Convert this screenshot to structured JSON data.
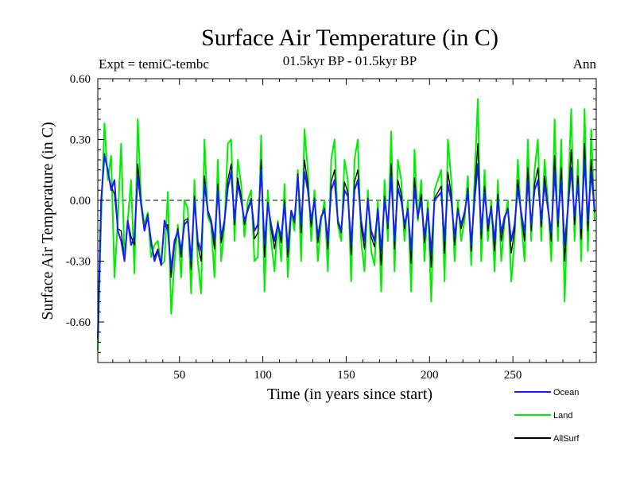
{
  "chart_data": {
    "type": "line",
    "title": "Surface Air Temperature (in C)",
    "subtitle": "01.5kyr BP - 01.5kyr BP",
    "experiment_label": "Expt = temiC-tembc",
    "period_label": "Ann",
    "xlabel": "Time (in years since start)",
    "ylabel": "Surface Air Temperature (in C)",
    "xlim": [
      1,
      300
    ],
    "ylim": [
      -0.8,
      0.6
    ],
    "x_ticks": [
      50,
      100,
      150,
      200,
      250
    ],
    "x_tick_labels": [
      "50",
      "100",
      "150",
      "200",
      "250"
    ],
    "y_ticks": [
      0.6,
      0.3,
      0.0,
      -0.3,
      -0.6
    ],
    "y_tick_labels": [
      "0.60",
      "0.30",
      "0.00",
      "-0.30",
      "-0.60"
    ],
    "reference_line": 0.0,
    "series": [
      {
        "name": "Land",
        "color": "#00ee00",
        "x": [
          1,
          3,
          5,
          7,
          9,
          11,
          13,
          15,
          17,
          19,
          21,
          23,
          25,
          27,
          29,
          31,
          33,
          35,
          37,
          39,
          41,
          43,
          45,
          47,
          49,
          51,
          53,
          55,
          57,
          59,
          61,
          63,
          65,
          67,
          69,
          71,
          73,
          75,
          77,
          79,
          81,
          83,
          85,
          87,
          89,
          91,
          93,
          95,
          97,
          99,
          101,
          103,
          105,
          107,
          109,
          111,
          113,
          115,
          117,
          119,
          121,
          123,
          125,
          127,
          129,
          131,
          133,
          135,
          137,
          139,
          141,
          143,
          145,
          147,
          149,
          151,
          153,
          155,
          157,
          159,
          161,
          163,
          165,
          167,
          169,
          171,
          173,
          175,
          177,
          179,
          181,
          183,
          185,
          187,
          189,
          191,
          193,
          195,
          197,
          199,
          201,
          203,
          205,
          207,
          209,
          211,
          213,
          215,
          217,
          219,
          221,
          223,
          225,
          227,
          229,
          231,
          233,
          235,
          237,
          239,
          241,
          243,
          245,
          247,
          249,
          251,
          253,
          255,
          257,
          259,
          261,
          263,
          265,
          267,
          269,
          271,
          273,
          275,
          277,
          279,
          281,
          283,
          285,
          287,
          289,
          291,
          293,
          295,
          297,
          299
        ],
        "values": [
          -0.74,
          -0.1,
          0.38,
          0.1,
          0.22,
          -0.38,
          -0.1,
          0.28,
          -0.28,
          -0.1,
          0.1,
          -0.36,
          0.4,
          0.0,
          -0.12,
          -0.06,
          -0.28,
          -0.22,
          -0.2,
          -0.32,
          -0.3,
          0.04,
          -0.56,
          -0.3,
          -0.12,
          -0.38,
          0.0,
          -0.04,
          -0.46,
          0.1,
          -0.3,
          -0.46,
          0.3,
          -0.08,
          -0.12,
          -0.38,
          0.2,
          -0.3,
          -0.12,
          0.28,
          0.3,
          -0.2,
          0.2,
          0.08,
          -0.18,
          0.0,
          0.05,
          -0.3,
          -0.28,
          0.32,
          -0.45,
          0.05,
          -0.2,
          -0.35,
          -0.1,
          -0.3,
          0.08,
          -0.38,
          -0.05,
          -0.15,
          0.15,
          -0.3,
          0.35,
          0.15,
          -0.2,
          0.05,
          -0.3,
          -0.1,
          0.0,
          -0.35,
          0.2,
          0.3,
          -0.12,
          -0.2,
          0.2,
          0.1,
          -0.4,
          0.2,
          0.3,
          -0.2,
          -0.35,
          0.05,
          -0.25,
          -0.32,
          0.0,
          -0.45,
          0.1,
          -0.2,
          0.34,
          -0.35,
          0.2,
          0.1,
          -0.2,
          0.0,
          -0.45,
          0.25,
          -0.1,
          0.1,
          -0.3,
          0.0,
          -0.5,
          0.05,
          0.1,
          0.15,
          -0.4,
          0.3,
          0.1,
          -0.3,
          0.0,
          -0.2,
          -0.1,
          0.12,
          -0.32,
          0.1,
          0.5,
          -0.3,
          0.15,
          -0.2,
          0.0,
          -0.35,
          0.1,
          -0.3,
          -0.1,
          0.0,
          -0.4,
          -0.2,
          0.2,
          -0.1,
          -0.3,
          0.3,
          -0.2,
          0.15,
          0.3,
          -0.2,
          0.2,
          0.0,
          -0.3,
          0.4,
          -0.2,
          0.3,
          -0.5,
          0.0,
          0.45,
          -0.2,
          0.2,
          -0.3,
          0.45,
          -0.25,
          0.35,
          -0.1
        ]
      },
      {
        "name": "Ocean",
        "color": "#1a1aff",
        "x": [
          1,
          3,
          5,
          7,
          9,
          11,
          13,
          15,
          17,
          19,
          21,
          23,
          25,
          27,
          29,
          31,
          33,
          35,
          37,
          39,
          41,
          43,
          45,
          47,
          49,
          51,
          53,
          55,
          57,
          59,
          61,
          63,
          65,
          67,
          69,
          71,
          73,
          75,
          77,
          79,
          81,
          83,
          85,
          87,
          89,
          91,
          93,
          95,
          97,
          99,
          101,
          103,
          105,
          107,
          109,
          111,
          113,
          115,
          117,
          119,
          121,
          123,
          125,
          127,
          129,
          131,
          133,
          135,
          137,
          139,
          141,
          143,
          145,
          147,
          149,
          151,
          153,
          155,
          157,
          159,
          161,
          163,
          165,
          167,
          169,
          171,
          173,
          175,
          177,
          179,
          181,
          183,
          185,
          187,
          189,
          191,
          193,
          195,
          197,
          199,
          201,
          203,
          205,
          207,
          209,
          211,
          213,
          215,
          217,
          219,
          221,
          223,
          225,
          227,
          229,
          231,
          233,
          235,
          237,
          239,
          241,
          243,
          245,
          247,
          249,
          251,
          253,
          255,
          257,
          259,
          261,
          263,
          265,
          267,
          269,
          271,
          273,
          275,
          277,
          279,
          281,
          283,
          285,
          287,
          289,
          291,
          293,
          295,
          297,
          299
        ],
        "values": [
          -0.68,
          0.0,
          0.22,
          0.15,
          0.05,
          0.1,
          -0.15,
          -0.2,
          -0.3,
          -0.1,
          -0.22,
          -0.18,
          0.12,
          -0.02,
          -0.15,
          -0.08,
          -0.2,
          -0.3,
          -0.25,
          -0.32,
          -0.1,
          -0.15,
          -0.34,
          -0.2,
          -0.15,
          -0.25,
          -0.12,
          -0.1,
          -0.3,
          0.0,
          -0.2,
          -0.25,
          0.08,
          -0.05,
          -0.1,
          -0.2,
          0.05,
          -0.18,
          -0.1,
          0.06,
          0.14,
          -0.1,
          0.08,
          0.0,
          -0.1,
          -0.05,
          0.0,
          -0.15,
          -0.12,
          0.15,
          -0.22,
          -0.02,
          -0.12,
          -0.2,
          -0.12,
          -0.18,
          -0.02,
          -0.24,
          -0.05,
          -0.1,
          0.12,
          -0.12,
          0.14,
          0.05,
          -0.1,
          0.0,
          -0.18,
          -0.08,
          -0.05,
          -0.2,
          0.05,
          0.1,
          -0.1,
          -0.15,
          0.05,
          0.02,
          -0.22,
          0.05,
          0.1,
          -0.1,
          -0.2,
          0.0,
          -0.15,
          -0.2,
          -0.05,
          -0.25,
          0.0,
          -0.12,
          0.12,
          -0.2,
          0.06,
          0.0,
          -0.12,
          -0.05,
          -0.25,
          0.06,
          -0.08,
          0.0,
          -0.18,
          -0.05,
          -0.26,
          0.0,
          0.02,
          0.04,
          -0.2,
          0.08,
          0.0,
          -0.18,
          -0.05,
          -0.12,
          -0.06,
          0.04,
          -0.22,
          0.0,
          0.18,
          -0.15,
          0.04,
          -0.12,
          -0.04,
          -0.2,
          0.0,
          -0.16,
          -0.08,
          -0.05,
          -0.2,
          -0.12,
          0.06,
          -0.06,
          -0.16,
          0.1,
          -0.12,
          0.05,
          0.1,
          -0.1,
          0.08,
          -0.04,
          -0.16,
          0.14,
          -0.1,
          0.1,
          -0.22,
          -0.04,
          0.16,
          -0.08,
          0.08,
          -0.14,
          0.2,
          -0.1,
          0.14,
          -0.05
        ]
      },
      {
        "name": "AllSurf",
        "color": "#000000",
        "x": [
          1,
          3,
          5,
          7,
          9,
          11,
          13,
          15,
          17,
          19,
          21,
          23,
          25,
          27,
          29,
          31,
          33,
          35,
          37,
          39,
          41,
          43,
          45,
          47,
          49,
          51,
          53,
          55,
          57,
          59,
          61,
          63,
          65,
          67,
          69,
          71,
          73,
          75,
          77,
          79,
          81,
          83,
          85,
          87,
          89,
          91,
          93,
          95,
          97,
          99,
          101,
          103,
          105,
          107,
          109,
          111,
          113,
          115,
          117,
          119,
          121,
          123,
          125,
          127,
          129,
          131,
          133,
          135,
          137,
          139,
          141,
          143,
          145,
          147,
          149,
          151,
          153,
          155,
          157,
          159,
          161,
          163,
          165,
          167,
          169,
          171,
          173,
          175,
          177,
          179,
          181,
          183,
          185,
          187,
          189,
          191,
          193,
          195,
          197,
          199,
          201,
          203,
          205,
          207,
          209,
          211,
          213,
          215,
          217,
          219,
          221,
          223,
          225,
          227,
          229,
          231,
          233,
          235,
          237,
          239,
          241,
          243,
          245,
          247,
          249,
          251,
          253,
          255,
          257,
          259,
          261,
          263,
          265,
          267,
          269,
          271,
          273,
          275,
          277,
          279,
          281,
          283,
          285,
          287,
          289,
          291,
          293,
          295,
          297,
          299
        ],
        "values": [
          -0.7,
          -0.02,
          0.23,
          0.14,
          0.07,
          0.03,
          -0.14,
          -0.15,
          -0.3,
          -0.1,
          -0.18,
          -0.22,
          0.18,
          -0.01,
          -0.14,
          -0.07,
          -0.22,
          -0.28,
          -0.24,
          -0.32,
          -0.13,
          -0.12,
          -0.38,
          -0.22,
          -0.14,
          -0.28,
          -0.1,
          -0.09,
          -0.34,
          0.02,
          -0.22,
          -0.3,
          0.12,
          -0.06,
          -0.11,
          -0.24,
          0.08,
          -0.21,
          -0.11,
          0.1,
          0.18,
          -0.12,
          0.11,
          0.02,
          -0.12,
          -0.04,
          0.01,
          -0.19,
          -0.16,
          0.2,
          -0.28,
          -0.01,
          -0.14,
          -0.24,
          -0.11,
          -0.21,
          0.0,
          -0.28,
          -0.05,
          -0.11,
          0.13,
          -0.16,
          0.2,
          0.08,
          -0.13,
          0.01,
          -0.21,
          -0.08,
          -0.04,
          -0.24,
          0.09,
          0.15,
          -0.11,
          -0.16,
          0.09,
          0.04,
          -0.27,
          0.09,
          0.15,
          -0.13,
          -0.24,
          0.01,
          -0.18,
          -0.23,
          -0.04,
          -0.32,
          0.02,
          -0.14,
          0.18,
          -0.24,
          0.1,
          0.03,
          -0.14,
          -0.04,
          -0.31,
          0.11,
          -0.09,
          0.03,
          -0.21,
          -0.04,
          -0.33,
          0.01,
          0.04,
          0.07,
          -0.26,
          0.14,
          0.03,
          -0.22,
          -0.04,
          -0.14,
          -0.07,
          0.06,
          -0.25,
          0.03,
          0.28,
          -0.19,
          0.07,
          -0.15,
          -0.03,
          -0.25,
          0.03,
          -0.2,
          -0.09,
          -0.04,
          -0.26,
          -0.15,
          0.1,
          -0.07,
          -0.2,
          0.16,
          -0.15,
          0.08,
          0.16,
          -0.13,
          0.12,
          -0.03,
          -0.2,
          0.22,
          -0.13,
          0.16,
          -0.3,
          -0.03,
          0.25,
          -0.12,
          0.12,
          -0.19,
          0.28,
          -0.15,
          0.2,
          -0.06
        ]
      }
    ],
    "legend": {
      "placement": "bottom-right",
      "entries": [
        {
          "label": "Ocean",
          "color": "#1a1aff"
        },
        {
          "label": "Land",
          "color": "#00ee00"
        },
        {
          "label": "AllSurf",
          "color": "#000000"
        }
      ]
    }
  }
}
